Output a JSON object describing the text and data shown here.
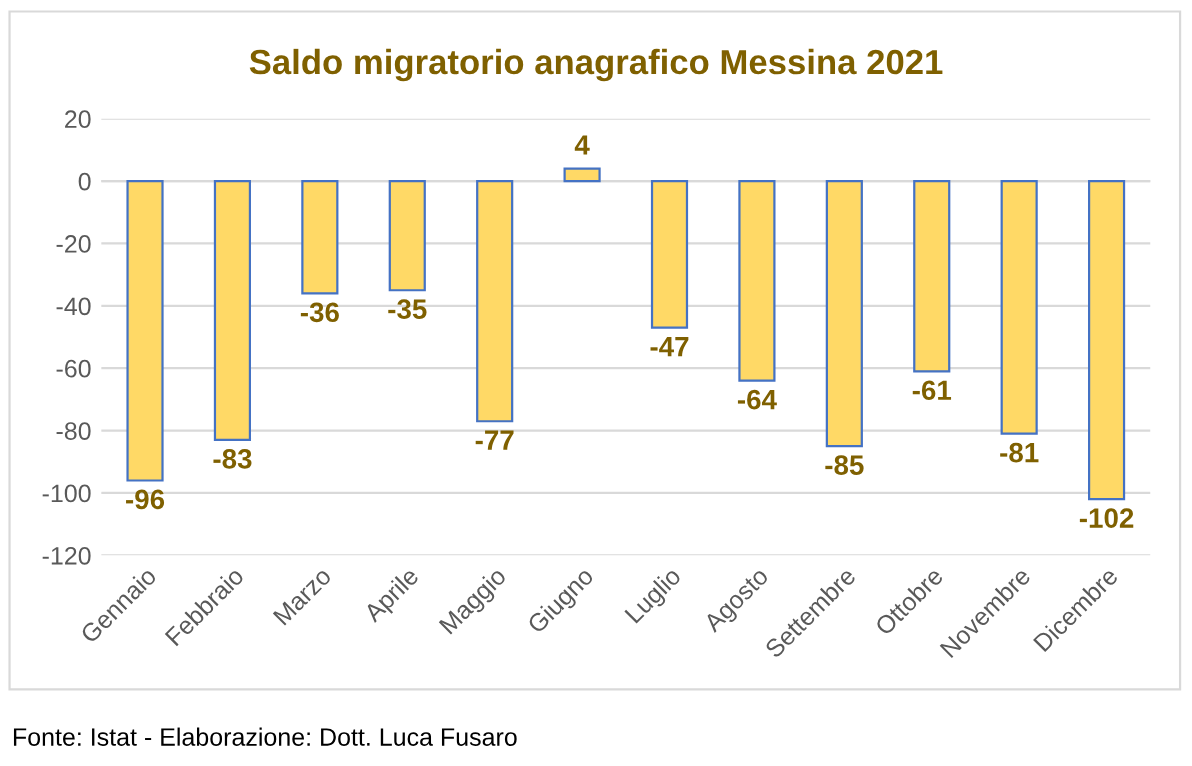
{
  "chart_data": {
    "type": "bar",
    "title": "Saldo migratorio anagrafico Messina 2021",
    "categories": [
      "Gennaio",
      "Febbraio",
      "Marzo",
      "Aprile",
      "Maggio",
      "Giugno",
      "Luglio",
      "Agosto",
      "Settembre",
      "Ottobre",
      "Novembre",
      "Dicembre"
    ],
    "values": [
      -96,
      -83,
      -36,
      -35,
      -77,
      4,
      -47,
      -64,
      -85,
      -61,
      -81,
      -102
    ],
    "color": "#ffd966",
    "ylim": [
      -120,
      20
    ],
    "yticks": [
      -120,
      -100,
      -80,
      -60,
      -40,
      -20,
      0,
      20
    ],
    "grid": "y",
    "data_labels": true,
    "annotations": [
      "Fonte: Istat - Elaborazione: Dott. Luca Fusaro"
    ]
  }
}
